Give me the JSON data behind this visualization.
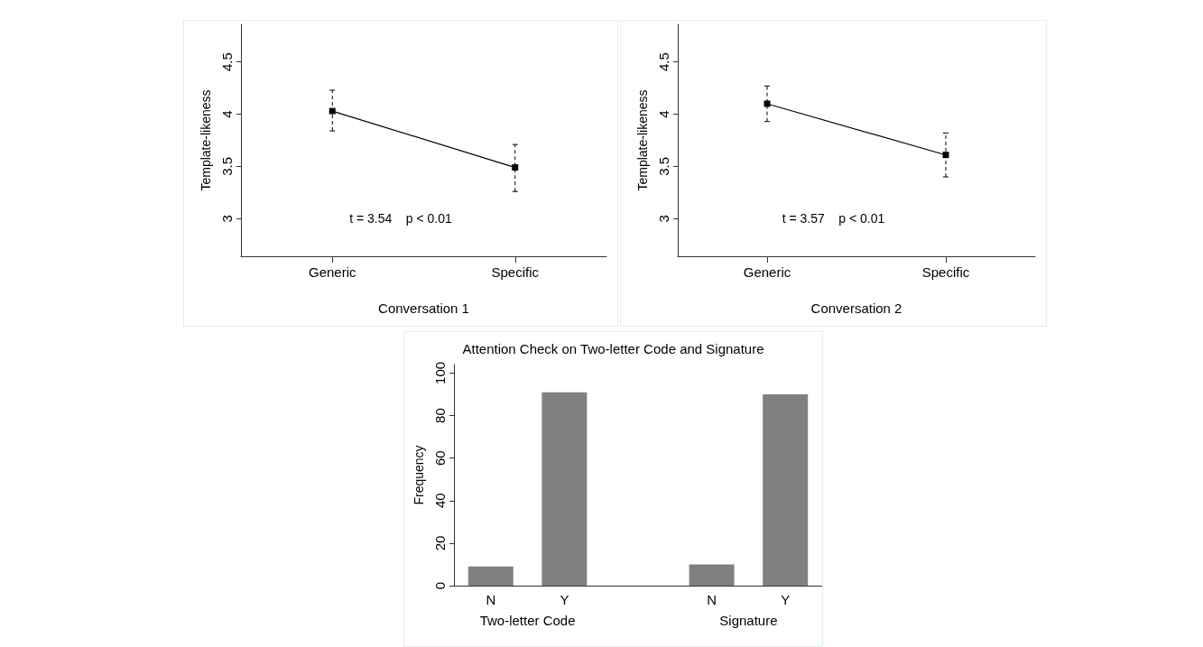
{
  "chart_data": [
    {
      "type": "line",
      "xlabel": "Conversation 1",
      "ylabel": "Template-likeness",
      "categories": [
        "Generic",
        "Specific"
      ],
      "marker": "square",
      "series": [
        {
          "color": "#000000",
          "values": [
            4.03,
            3.49
          ],
          "errors": [
            [
              3.84,
              4.23
            ],
            [
              3.26,
              3.71
            ]
          ]
        }
      ],
      "ylim": [
        2.64,
        4.86
      ],
      "yticks": [
        3,
        3.5,
        4,
        4.5
      ],
      "annotations": [
        "t = 3.54    p < 0.01"
      ]
    },
    {
      "type": "line",
      "xlabel": "Conversation 2",
      "ylabel": "Template-likeness",
      "categories": [
        "Generic",
        "Specific"
      ],
      "marker": "square",
      "series": [
        {
          "color": "#000000",
          "values": [
            4.1,
            3.61
          ],
          "errors": [
            [
              3.93,
              4.27
            ],
            [
              3.4,
              3.82
            ]
          ]
        }
      ],
      "ylim": [
        2.64,
        4.86
      ],
      "yticks": [
        3,
        3.5,
        4,
        4.5
      ],
      "annotations": [
        "t = 3.57    p < 0.01"
      ]
    },
    {
      "type": "bar",
      "title": "Attention Check on Two-letter Code and Signature",
      "ylabel": "Frequency",
      "categories": [
        "N",
        "Y",
        null,
        "N",
        "Y"
      ],
      "series": [
        {
          "color": "#808080",
          "values": [
            9,
            91,
            null,
            10,
            90
          ]
        }
      ],
      "ylim": [
        0,
        104
      ],
      "yticks": [
        0,
        20,
        40,
        60,
        80,
        100
      ],
      "annotations": [
        "Two-letter Code",
        "Signature"
      ]
    }
  ]
}
